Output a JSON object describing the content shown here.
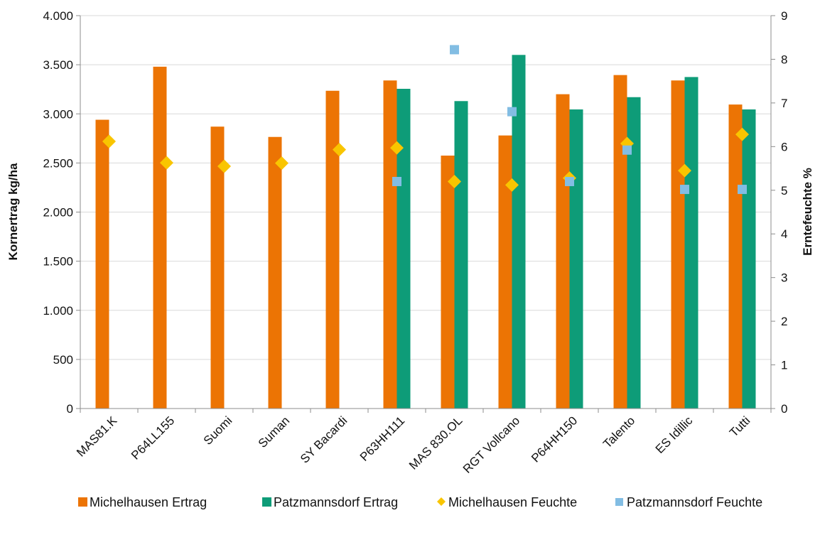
{
  "chart_data": {
    "type": "bar",
    "title": "",
    "categories": [
      "MAS81.K",
      "P64LL155",
      "Suomi",
      "Suman",
      "SY Bacardi",
      "P63HH111",
      "MAS 830.OL",
      "RGT Vollcano",
      "P64HH150",
      "Talento",
      "ES Idillic",
      "Tutti"
    ],
    "ylabel": "Kornertrag kg/ha",
    "y2label": "Erntefeuchte %",
    "ylim": [
      0,
      4000
    ],
    "y2lim": [
      0,
      9
    ],
    "yticks": [
      0,
      500,
      1000,
      1500,
      2000,
      2500,
      3000,
      3500,
      4000
    ],
    "yticklabels": [
      "0",
      "500",
      "1.000",
      "1.500",
      "2.000",
      "2.500",
      "3.000",
      "3.500",
      "4.000"
    ],
    "y2ticks": [
      0,
      1,
      2,
      3,
      4,
      5,
      6,
      7,
      8,
      9
    ],
    "y2ticklabels": [
      "0",
      "1",
      "2",
      "3",
      "4",
      "5",
      "6",
      "7",
      "8",
      "9"
    ],
    "grid": true,
    "legend_position": "bottom",
    "series": [
      {
        "name": "Michelhausen Ertrag",
        "kind": "bar",
        "axis": "left",
        "color": "#ec7404",
        "values": [
          2940,
          3480,
          2870,
          2765,
          3235,
          3340,
          2575,
          2780,
          3200,
          3395,
          3340,
          3095
        ]
      },
      {
        "name": "Patzmannsdorf Ertrag",
        "kind": "bar",
        "axis": "left",
        "color": "#0e9c78",
        "values": [
          null,
          null,
          null,
          null,
          null,
          3255,
          3130,
          3600,
          3045,
          3170,
          3375,
          3045
        ]
      },
      {
        "name": "Michelhausen Feuchte",
        "kind": "diamond",
        "axis": "right",
        "color": "#f9c500",
        "values": [
          6.12,
          5.63,
          5.55,
          5.62,
          5.93,
          5.97,
          5.2,
          5.12,
          5.28,
          6.07,
          5.45,
          6.28
        ]
      },
      {
        "name": "Patzmannsdorf Feuchte",
        "kind": "square",
        "axis": "right",
        "color": "#82bde3",
        "values": [
          null,
          null,
          null,
          null,
          null,
          5.2,
          8.22,
          6.8,
          5.2,
          5.92,
          5.02,
          5.02
        ]
      }
    ]
  }
}
